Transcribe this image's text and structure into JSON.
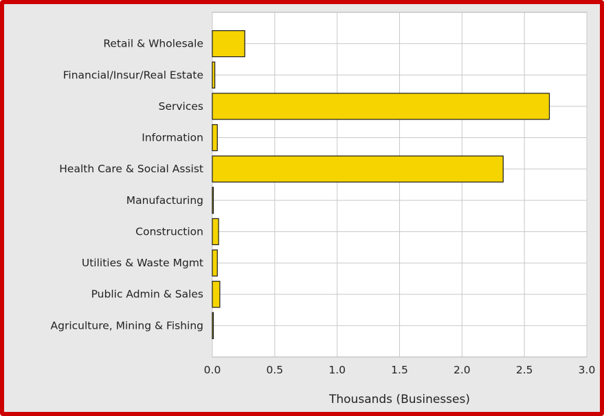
{
  "chart_data": {
    "type": "bar",
    "orientation": "horizontal",
    "categories": [
      "Retail & Wholesale",
      "Financial/Insur/Real Estate",
      "Services",
      "Information",
      "Health Care & Social Assist",
      "Manufacturing",
      "Construction",
      "Utilities & Waste Mgmt",
      "Public Admin & Sales",
      "Agriculture, Mining & Fishing"
    ],
    "values": [
      0.26,
      0.02,
      2.7,
      0.04,
      2.33,
      0.005,
      0.05,
      0.04,
      0.06,
      0.005
    ],
    "xlabel": "Thousands (Businesses)",
    "ylabel": "",
    "xlim": [
      0,
      3.0
    ],
    "xticks": [
      "0.0",
      "0.5",
      "1.0",
      "1.5",
      "2.0",
      "2.5",
      "3.0"
    ],
    "grid": true,
    "colors": {
      "bar": "#f5d400",
      "bar_stroke": "#1a1a1a",
      "plot_bg": "#ffffff",
      "grid": "#c8c8c8",
      "frame": "#cc0000",
      "outer_bg": "#e8e8e8"
    }
  }
}
